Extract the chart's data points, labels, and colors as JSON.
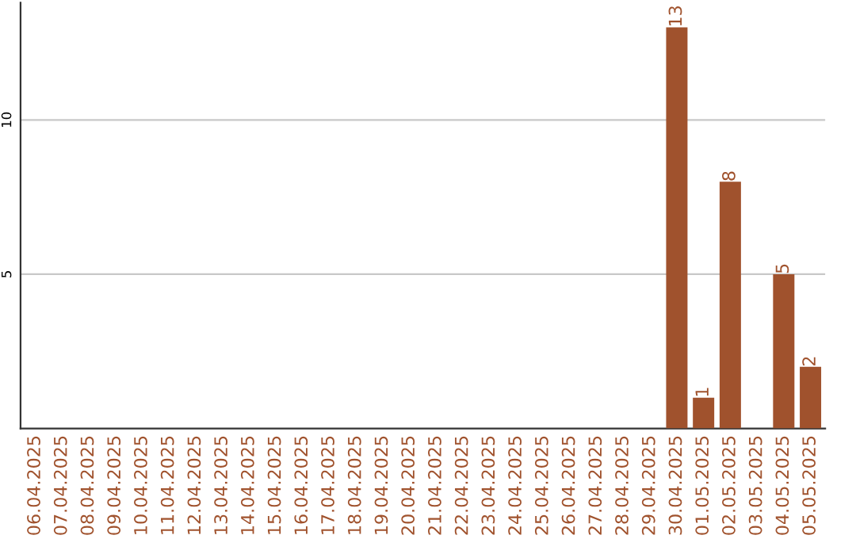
{
  "chart_data": {
    "type": "bar",
    "categories": [
      "06.04.2025",
      "07.04.2025",
      "08.04.2025",
      "09.04.2025",
      "10.04.2025",
      "11.04.2025",
      "12.04.2025",
      "13.04.2025",
      "14.04.2025",
      "15.04.2025",
      "16.04.2025",
      "17.04.2025",
      "18.04.2025",
      "19.04.2025",
      "20.04.2025",
      "21.04.2025",
      "22.04.2025",
      "23.04.2025",
      "24.04.2025",
      "25.04.2025",
      "26.04.2025",
      "27.04.2025",
      "28.04.2025",
      "29.04.2025",
      "30.04.2025",
      "01.05.2025",
      "02.05.2025",
      "03.05.2025",
      "04.05.2025",
      "05.05.2025"
    ],
    "values": [
      0,
      0,
      0,
      0,
      0,
      0,
      0,
      0,
      0,
      0,
      0,
      0,
      0,
      0,
      0,
      0,
      0,
      0,
      0,
      0,
      0,
      0,
      0,
      0,
      13,
      1,
      8,
      0,
      5,
      2
    ],
    "value_labels": [
      null,
      null,
      null,
      null,
      null,
      null,
      null,
      null,
      null,
      null,
      null,
      null,
      null,
      null,
      null,
      null,
      null,
      null,
      null,
      null,
      null,
      null,
      null,
      null,
      "13",
      "1",
      "8",
      null,
      "5",
      "2"
    ],
    "color": "#a0522d",
    "ylim": [
      0,
      13.8
    ],
    "yticks": [
      5,
      10
    ],
    "grid": "y",
    "legend": false
  }
}
